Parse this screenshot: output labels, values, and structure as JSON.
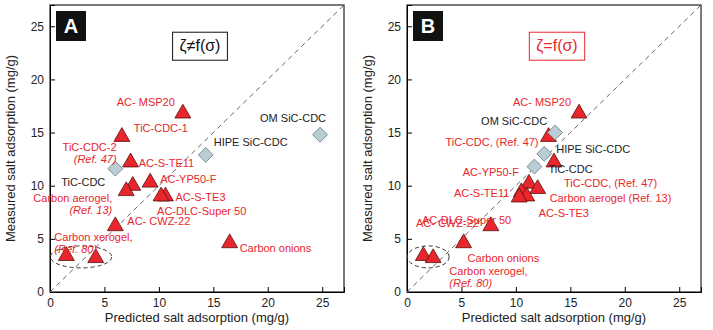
{
  "chart_data": [
    {
      "type": "scatter",
      "panel_label": "A",
      "title": "ζ≠f(σ)",
      "x_label": "Predicted salt adsorption (mg/g)",
      "y_label": "Measured salt adsorption (mg/g)",
      "xlim": [
        0,
        27
      ],
      "ylim": [
        0,
        27
      ],
      "xticks": [
        0,
        5,
        10,
        15,
        20,
        25
      ],
      "yticks": [
        0,
        5,
        10,
        15,
        20,
        25
      ],
      "series": [
        {
          "marker": "triangle",
          "color": "#e8262b",
          "x": [
            12.2,
            6.6,
            7.4,
            7.6,
            7.0,
            9.2,
            10.6,
            10.2,
            6.0,
            1.5,
            4.2,
            16.5
          ],
          "values": [
            16.8,
            14.6,
            12.2,
            10.0,
            9.5,
            10.3,
            9.0,
            9.0,
            6.2,
            3.4,
            3.2,
            4.6
          ],
          "labels": [
            [
              "AC- MSP20"
            ],
            [
              "TiC-CDC-1"
            ],
            [
              "TiC-CDC-2",
              "(Ref. 47)"
            ],
            [
              "AC-S-TE11"
            ],
            [
              "Carbon aerogel,",
              "(Ref. 13)"
            ],
            [
              "AC-YP50-F"
            ],
            [
              "AC-S-TE3"
            ],
            [
              "AC-DLC-Super 50"
            ],
            [
              "AC- CWZ-22"
            ],
            [
              "Carbon xerogel,",
              "(Ref. 80)"
            ],
            null,
            [
              "Carbon onions"
            ]
          ]
        },
        {
          "marker": "diamond",
          "color": "#b9cdd4",
          "x": [
            6.0,
            14.3,
            24.8
          ],
          "values": [
            11.6,
            12.9,
            14.8
          ],
          "labels": [
            [
              "TiC-CDC"
            ],
            [
              "HIPE SiC-CDC"
            ],
            [
              "OM SiC-CDC"
            ]
          ]
        }
      ]
    },
    {
      "type": "scatter",
      "panel_label": "B",
      "title": "ζ=f(σ)",
      "x_label": "Predicted salt adsorption (mg/g)",
      "y_label": "Measured salt adsorption (mg/g)",
      "xlim": [
        0,
        27
      ],
      "ylim": [
        0,
        27
      ],
      "xticks": [
        0,
        5,
        10,
        15,
        20,
        25
      ],
      "yticks": [
        0,
        5,
        10,
        15,
        20,
        25
      ],
      "series": [
        {
          "marker": "triangle",
          "color": "#e8262b",
          "x": [
            15.8,
            13.0,
            13.5,
            11.2,
            10.5,
            12.0,
            11.0,
            10.3,
            7.7,
            5.2,
            1.5,
            2.4
          ],
          "values": [
            16.8,
            14.6,
            12.2,
            10.2,
            9.4,
            9.7,
            9.0,
            8.9,
            6.2,
            4.6,
            3.4,
            3.2
          ],
          "labels": [
            [
              "AC- MSP20"
            ],
            [
              "TiC-CDC, (Ref. 47)"
            ],
            [
              "TiC-CDC, (Ref. 47)"
            ],
            [
              "AC-YP50-F"
            ],
            [
              "AC-S-TE11"
            ],
            [
              "Carbon aerogel (Ref. 13)"
            ],
            [
              "AC-S-TE3"
            ],
            [
              "AC-DLC-Super 50"
            ],
            [
              "AC- CWZ-22"
            ],
            [
              "Carbon onions"
            ],
            [
              "Carbon xerogel,",
              "(Ref. 80)"
            ],
            null
          ]
        },
        {
          "marker": "diamond",
          "color": "#b9cdd4",
          "x": [
            11.7,
            12.6,
            13.6
          ],
          "values": [
            11.8,
            13.0,
            15.0
          ],
          "labels": [
            [
              "TiC-CDC"
            ],
            [
              "HIPE SiC-CDC"
            ],
            [
              "OM SiC-CDC"
            ]
          ]
        }
      ]
    }
  ]
}
